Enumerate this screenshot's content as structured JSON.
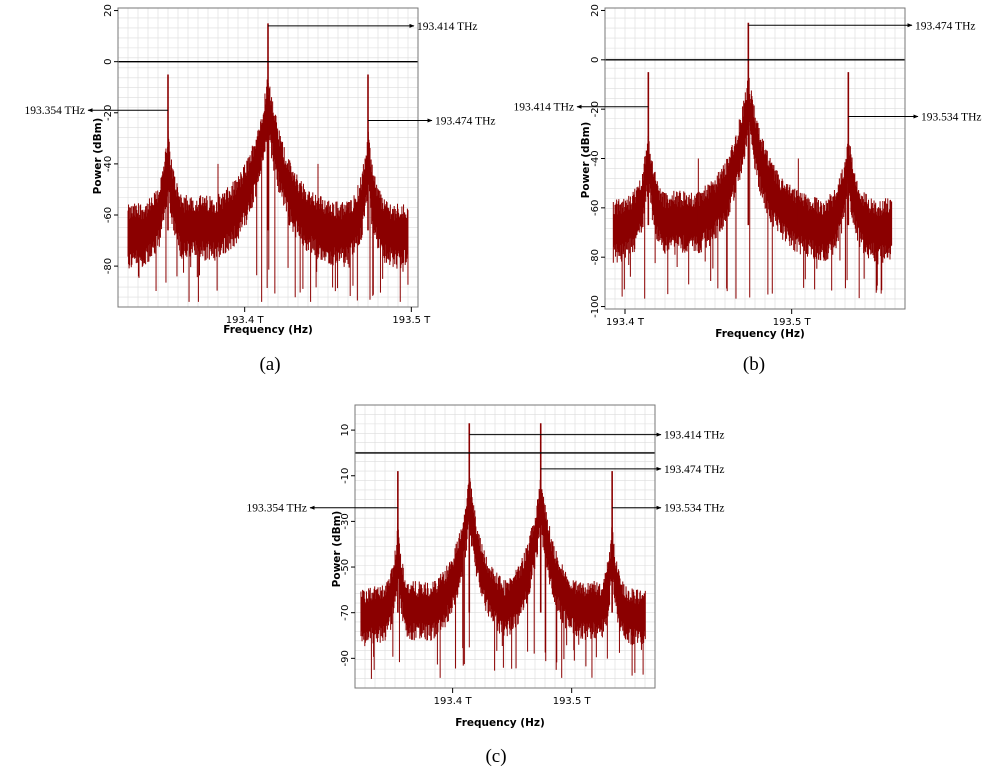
{
  "colors": {
    "trace": "#8b0000",
    "grid": "#dcdcdc",
    "frame": "#000000",
    "annotation": "#000000"
  },
  "chart_data": [
    {
      "id": "a",
      "type": "line",
      "caption": "(a)",
      "xlabel": "Frequency (Hz)",
      "ylabel": "Power (dBm)",
      "xlim": [
        193.324,
        193.504
      ],
      "ylim": [
        -96,
        21
      ],
      "x_ticks": [
        {
          "value": 193.4,
          "label": "193.4 T"
        },
        {
          "value": 193.5,
          "label": "193.5 T"
        }
      ],
      "y_ticks": [
        {
          "value": 20,
          "label": "20"
        },
        {
          "value": 0,
          "label": "0"
        },
        {
          "value": -20,
          "label": "-20"
        },
        {
          "value": -40,
          "label": "-40"
        },
        {
          "value": -60,
          "label": "-60"
        },
        {
          "value": -80,
          "label": "-80"
        }
      ],
      "reference_line": 0,
      "noise_range": [
        193.33,
        193.498
      ],
      "noise_base": -66,
      "series": [
        {
          "values": [
            {
              "x": 193.354,
              "y": -5
            },
            {
              "x": 193.414,
              "y": 15
            },
            {
              "x": 193.474,
              "y": -5
            }
          ]
        }
      ],
      "minor_tones": [
        {
          "x": 193.384,
          "y": -40
        },
        {
          "x": 193.444,
          "y": -40
        }
      ],
      "annotations": [
        {
          "text": "193.354 THz",
          "x": 193.354,
          "y": -19,
          "side": "left"
        },
        {
          "text": "193.414 THz",
          "x": 193.414,
          "y": 14,
          "side": "right"
        },
        {
          "text": "193.474 THz",
          "x": 193.474,
          "y": -23,
          "side": "right"
        }
      ]
    },
    {
      "id": "b",
      "type": "line",
      "caption": "(b)",
      "xlabel": "Frequency (Hz)",
      "ylabel": "Power (dBm)",
      "xlim": [
        193.388,
        193.568
      ],
      "ylim": [
        -101,
        21
      ],
      "x_ticks": [
        {
          "value": 193.4,
          "label": "193.4 T"
        },
        {
          "value": 193.5,
          "label": "193.5 T"
        }
      ],
      "y_ticks": [
        {
          "value": 20,
          "label": "20"
        },
        {
          "value": 0,
          "label": "0"
        },
        {
          "value": -20,
          "label": "-20"
        },
        {
          "value": -40,
          "label": "-40"
        },
        {
          "value": -60,
          "label": "-60"
        },
        {
          "value": -80,
          "label": "-80"
        },
        {
          "value": -100,
          "label": "-100"
        }
      ],
      "reference_line": 0,
      "noise_range": [
        193.393,
        193.56
      ],
      "noise_base": -67,
      "series": [
        {
          "values": [
            {
              "x": 193.414,
              "y": -5
            },
            {
              "x": 193.474,
              "y": 15
            },
            {
              "x": 193.534,
              "y": -5
            }
          ]
        }
      ],
      "minor_tones": [
        {
          "x": 193.444,
          "y": -40
        },
        {
          "x": 193.504,
          "y": -40
        }
      ],
      "annotations": [
        {
          "text": "193.414 THz",
          "x": 193.414,
          "y": -19,
          "side": "left"
        },
        {
          "text": "193.474 THz",
          "x": 193.474,
          "y": 14,
          "side": "right"
        },
        {
          "text": "193.534 THz",
          "x": 193.534,
          "y": -23,
          "side": "right"
        }
      ]
    },
    {
      "id": "c",
      "type": "line",
      "caption": "(c)",
      "xlabel": "Frequency (Hz)",
      "ylabel": "Power (dBm)",
      "xlim": [
        193.318,
        193.57
      ],
      "ylim": [
        -103,
        21
      ],
      "x_ticks": [
        {
          "value": 193.4,
          "label": "193.4 T"
        },
        {
          "value": 193.5,
          "label": "193.5 T"
        }
      ],
      "y_ticks": [
        {
          "value": 10,
          "label": "10"
        },
        {
          "value": -10,
          "label": "-10"
        },
        {
          "value": -30,
          "label": "-30"
        },
        {
          "value": -50,
          "label": "-50"
        },
        {
          "value": -70,
          "label": "-70"
        },
        {
          "value": -90,
          "label": "-90"
        }
      ],
      "reference_line": 0,
      "noise_range": [
        193.323,
        193.562
      ],
      "noise_base": -70,
      "series": [
        {
          "values": [
            {
              "x": 193.354,
              "y": -8
            },
            {
              "x": 193.414,
              "y": 13
            },
            {
              "x": 193.474,
              "y": 13
            },
            {
              "x": 193.534,
              "y": -8
            }
          ]
        }
      ],
      "minor_tones": [],
      "annotations": [
        {
          "text": "193.414 THz",
          "x": 193.414,
          "y": 8,
          "side": "right"
        },
        {
          "text": "193.474 THz",
          "x": 193.474,
          "y": -7,
          "side": "right"
        },
        {
          "text": "193.354 THz",
          "x": 193.354,
          "y": -24,
          "side": "left"
        },
        {
          "text": "193.534 THz",
          "x": 193.534,
          "y": -24,
          "side": "right"
        }
      ]
    }
  ]
}
